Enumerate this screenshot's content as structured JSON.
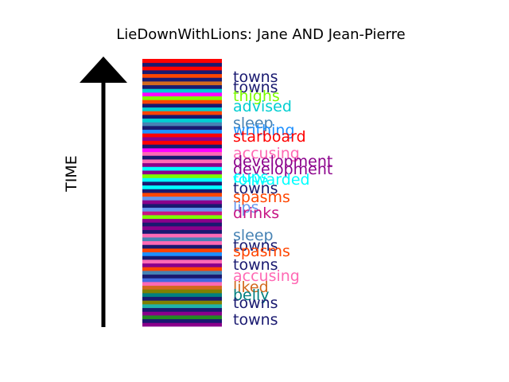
{
  "chart_data": {
    "type": "bar",
    "title": "LieDownWithLions: Jane AND Jean-Pierre",
    "ylabel": "TIME",
    "xlabel": "",
    "grid": false,
    "legend": "none",
    "stripes_bottom_to_top": [
      "#8b008b",
      "#191970",
      "#228b22",
      "#8b008b",
      "#191970",
      "#20b2aa",
      "#808000",
      "#191970",
      "#008080",
      "#808000",
      "#d2691e",
      "#ff69b4",
      "#4169e1",
      "#191970",
      "#4682b4",
      "#ff4500",
      "#8b008b",
      "#ff69b4",
      "#191970",
      "#1e90ff",
      "#ff4500",
      "#191970",
      "#ff69b4",
      "#4682b4",
      "#ff69b4",
      "#191970",
      "#8b008b",
      "#191970",
      "#8b008b",
      "#7cfc00",
      "#c71585",
      "#6495ed",
      "#191970",
      "#8b008b",
      "#6495ed",
      "#ff4500",
      "#191970",
      "#00ffff",
      "#191970",
      "#00ffff",
      "#7cfc00",
      "#8b008b",
      "#00ffff",
      "#8b008b",
      "#ff69b4",
      "#191970",
      "#ff69b4",
      "#ff00ff",
      "#191970",
      "#ff0000",
      "#8b008b",
      "#ff0000",
      "#1e90ff",
      "#191970",
      "#4682b4",
      "#00ced1",
      "#191970",
      "#ff4500",
      "#00ced1",
      "#191970",
      "#ff4500",
      "#7cfc00",
      "#ff00ff",
      "#00ced1",
      "#191970",
      "#d2691e",
      "#191970",
      "#ff4500",
      "#191970",
      "#ff0000",
      "#191970",
      "#ff0000"
    ],
    "labels": [
      {
        "text": "towns",
        "color": "#191970"
      },
      {
        "text": "towns",
        "color": "#191970"
      },
      {
        "text": "thighs",
        "color": "#7cfc00"
      },
      {
        "text": "advised",
        "color": "#00ced1"
      },
      {
        "text": "sleep",
        "color": "#4682b4"
      },
      {
        "text": "writhing",
        "color": "#1e90ff"
      },
      {
        "text": "starboard",
        "color": "#ff0000"
      },
      {
        "text": "accusing",
        "color": "#ff69b4"
      },
      {
        "text": "development",
        "color": "#8b008b"
      },
      {
        "text": "development",
        "color": "#8b008b"
      },
      {
        "text": "cups",
        "color": "#00ffff"
      },
      {
        "text": "forwarded",
        "color": "#00ffff"
      },
      {
        "text": "towns",
        "color": "#191970"
      },
      {
        "text": "spasms",
        "color": "#ff4500"
      },
      {
        "text": "lips",
        "color": "#6495ed"
      },
      {
        "text": "drinks",
        "color": "#c71585"
      },
      {
        "text": "sleep",
        "color": "#4682b4"
      },
      {
        "text": "towns",
        "color": "#191970"
      },
      {
        "text": "spasms",
        "color": "#ff4500"
      },
      {
        "text": "towns",
        "color": "#191970"
      },
      {
        "text": "accusing",
        "color": "#ff69b4"
      },
      {
        "text": "liked",
        "color": "#d2691e"
      },
      {
        "text": "belly",
        "color": "#008080"
      },
      {
        "text": "towns",
        "color": "#191970"
      },
      {
        "text": "towns",
        "color": "#191970"
      }
    ]
  }
}
